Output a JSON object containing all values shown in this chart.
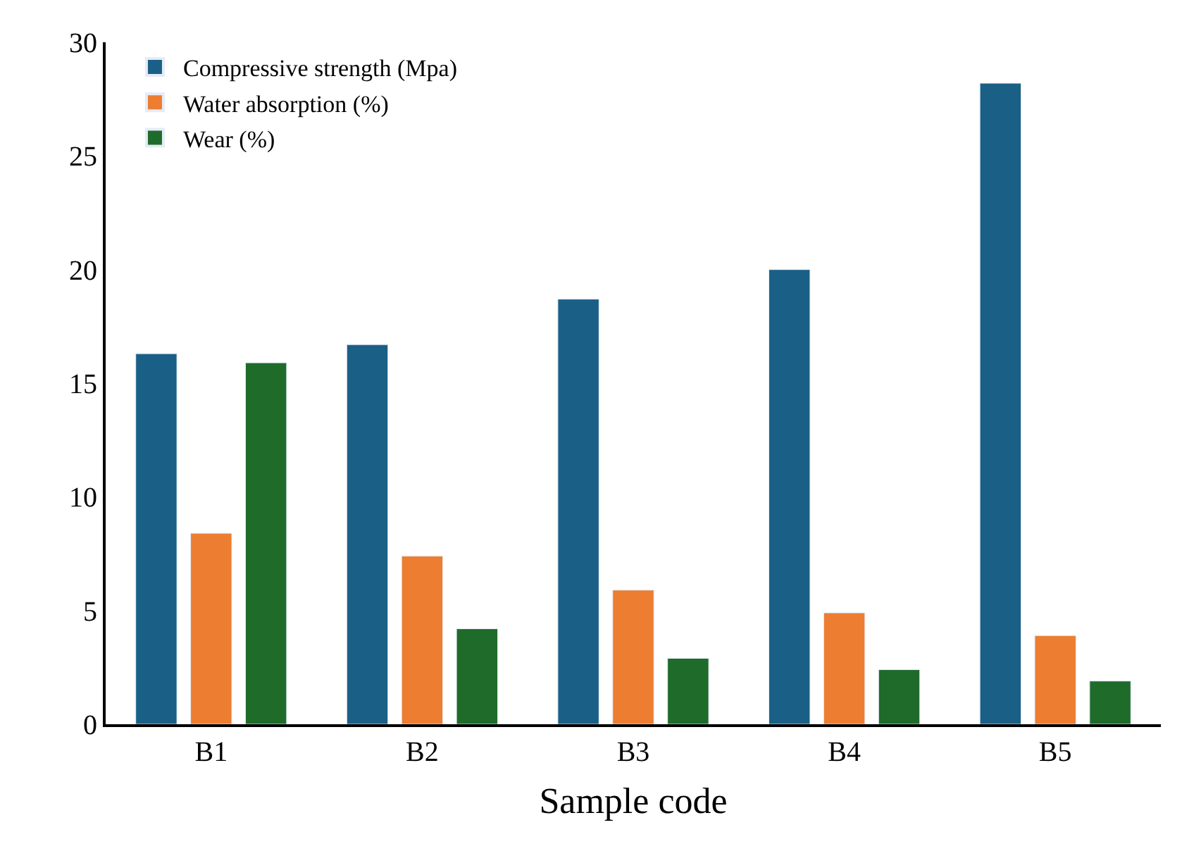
{
  "chart_data": {
    "type": "bar",
    "xlabel": "Sample code",
    "categories": [
      "B1",
      "B2",
      "B3",
      "B4",
      "B5"
    ],
    "series": [
      {
        "name": "Compressive strength (Mpa)",
        "color": "#1a5f86",
        "values": [
          16.3,
          16.7,
          18.7,
          20.0,
          28.2
        ]
      },
      {
        "name": "Water absorption (%)",
        "color": "#ed7d31",
        "values": [
          8.4,
          7.4,
          5.9,
          4.9,
          3.9
        ]
      },
      {
        "name": "Wear (%)",
        "color": "#1e6b2a",
        "values": [
          15.9,
          4.2,
          2.9,
          2.4,
          1.9
        ]
      }
    ],
    "ylim": [
      0,
      30
    ],
    "yticks": [
      0,
      5,
      10,
      15,
      20,
      25,
      30
    ],
    "legend": "top left"
  }
}
